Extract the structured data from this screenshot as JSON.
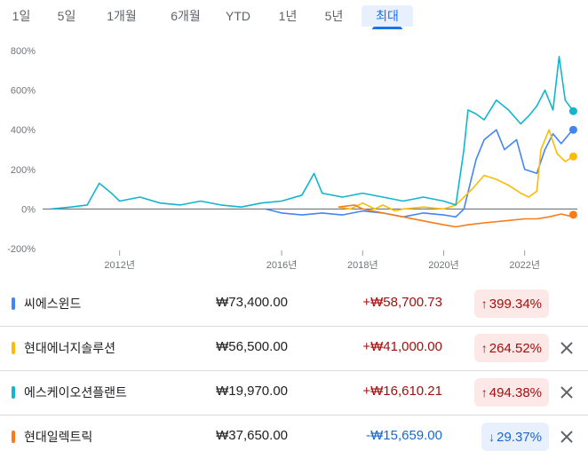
{
  "tabs": [
    {
      "label": "1일",
      "active": false
    },
    {
      "label": "5일",
      "active": false
    },
    {
      "label": "1개월",
      "active": false
    },
    {
      "label": "6개월",
      "active": false
    },
    {
      "label": "YTD",
      "active": false
    },
    {
      "label": "1년",
      "active": false
    },
    {
      "label": "5년",
      "active": false
    },
    {
      "label": "최대",
      "active": true
    }
  ],
  "chart_data": {
    "type": "line",
    "title": "",
    "xlabel": "",
    "ylabel": "",
    "ylim": [
      -200,
      800
    ],
    "y_ticks": [
      "800%",
      "600%",
      "400%",
      "200%",
      "0%",
      "-200%"
    ],
    "y_tick_values": [
      800,
      600,
      400,
      200,
      0,
      -200
    ],
    "x_ticks": [
      "2012년",
      "2016년",
      "2018년",
      "2020년",
      "2022년"
    ],
    "x_tick_values": [
      2012,
      2016,
      2018,
      2020,
      2022
    ],
    "xlim": [
      2010.1,
      2023.3
    ],
    "grid": false,
    "series": [
      {
        "color": "#4285f4",
        "x": [
          2015.6,
          2016.0,
          2016.5,
          2017.0,
          2017.5,
          2018.0,
          2018.5,
          2019.0,
          2019.5,
          2020.0,
          2020.3,
          2020.5,
          2020.8,
          2021.0,
          2021.3,
          2021.5,
          2021.8,
          2022.0,
          2022.3,
          2022.5,
          2022.7,
          2022.9,
          2023.1,
          2023.2
        ],
        "y": [
          0,
          -20,
          -30,
          -20,
          -30,
          -10,
          -20,
          -40,
          -20,
          -30,
          -40,
          0,
          250,
          350,
          400,
          300,
          350,
          200,
          180,
          300,
          380,
          330,
          380,
          400
        ]
      },
      {
        "color": "#fbbc04",
        "x": [
          2017.4,
          2017.7,
          2018.0,
          2018.3,
          2018.5,
          2018.8,
          2019.0,
          2019.5,
          2020.0,
          2020.3,
          2020.5,
          2020.7,
          2021.0,
          2021.3,
          2021.6,
          2021.9,
          2022.1,
          2022.3,
          2022.4,
          2022.6,
          2022.8,
          2023.0,
          2023.2
        ],
        "y": [
          10,
          0,
          30,
          0,
          20,
          -10,
          0,
          10,
          0,
          20,
          60,
          100,
          170,
          150,
          120,
          80,
          60,
          90,
          300,
          400,
          280,
          240,
          265
        ]
      },
      {
        "color": "#12b5cb",
        "x": [
          2010.3,
          2010.8,
          2011.2,
          2011.5,
          2011.8,
          2012.0,
          2012.5,
          2013.0,
          2013.5,
          2014.0,
          2014.5,
          2015.0,
          2015.5,
          2016.0,
          2016.5,
          2016.8,
          2017.0,
          2017.5,
          2018.0,
          2018.5,
          2019.0,
          2019.5,
          2020.0,
          2020.3,
          2020.5,
          2020.6,
          2020.8,
          2021.0,
          2021.3,
          2021.6,
          2021.9,
          2022.1,
          2022.3,
          2022.5,
          2022.7,
          2022.85,
          2023.0,
          2023.2
        ],
        "y": [
          0,
          10,
          20,
          130,
          80,
          40,
          60,
          30,
          20,
          40,
          20,
          10,
          30,
          40,
          70,
          180,
          80,
          60,
          80,
          60,
          40,
          60,
          40,
          20,
          300,
          500,
          480,
          450,
          550,
          500,
          430,
          470,
          520,
          600,
          500,
          770,
          550,
          494
        ]
      },
      {
        "color": "#fa7b17",
        "x": [
          2017.4,
          2017.8,
          2018.0,
          2018.5,
          2019.0,
          2019.5,
          2020.0,
          2020.3,
          2020.6,
          2021.0,
          2021.5,
          2022.0,
          2022.3,
          2022.6,
          2022.9,
          2023.1,
          2023.2
        ],
        "y": [
          10,
          20,
          0,
          -20,
          -40,
          -60,
          -80,
          -90,
          -80,
          -70,
          -60,
          -50,
          -50,
          -40,
          -25,
          -35,
          -29
        ]
      }
    ]
  },
  "rows": [
    {
      "name": "씨에스윈드",
      "color": "#4285f4",
      "price": "₩73,400.00",
      "change": "+₩58,700.73",
      "pct": "399.34%",
      "direction": "up",
      "arrow": "↑",
      "closable": false
    },
    {
      "name": "현대에너지솔루션",
      "color": "#fbbc04",
      "price": "₩56,500.00",
      "change": "+₩41,000.00",
      "pct": "264.52%",
      "direction": "up",
      "arrow": "↑",
      "closable": true
    },
    {
      "name": "에스케이오션플랜트",
      "color": "#12b5cb",
      "price": "₩19,970.00",
      "change": "+₩16,610.21",
      "pct": "494.38%",
      "direction": "up",
      "arrow": "↑",
      "closable": true
    },
    {
      "name": "현대일렉트릭",
      "color": "#fa7b17",
      "price": "₩37,650.00",
      "change": "-₩15,659.00",
      "pct": "29.37%",
      "direction": "down",
      "arrow": "↓",
      "closable": true
    }
  ],
  "colors": {
    "up": "#a50e0e",
    "down": "#1967d2",
    "accent": "#1a73e8"
  }
}
